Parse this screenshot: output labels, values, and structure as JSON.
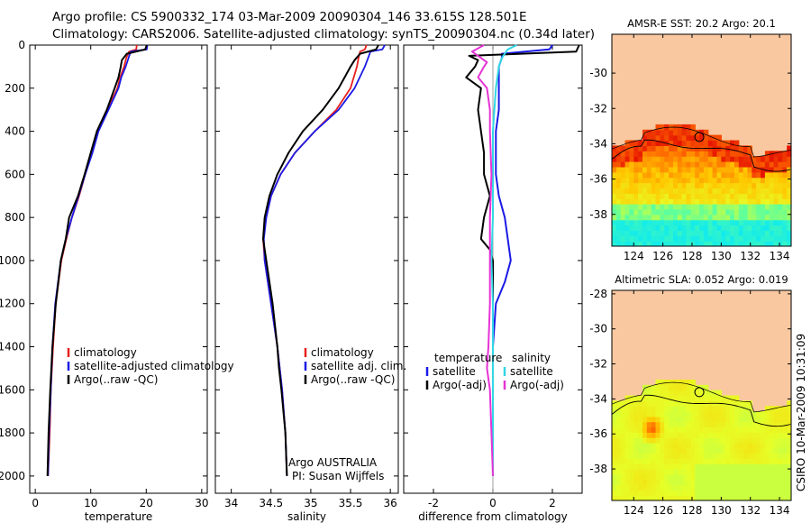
{
  "header": {
    "line1": "Argo profile: CS 5900332_174 03-Mar-2009 20090304_146 33.615S 128.501E",
    "line2": "Climatology: CARS2006. Satellite-adjusted climatology: synTS_20090304.nc (0.34d later)"
  },
  "side_label": "CSIRO 10-Mar-2009 10:31:09",
  "panel_notes": {
    "argo_program": "Argo AUSTRALIA",
    "pi": "PI: Susan Wijffels"
  },
  "colors": {
    "climatology": "#e8201c",
    "satellite": "#1a1ae6",
    "argo": "#000000",
    "cyan": "#33d6e6",
    "magenta": "#e633d6",
    "land": "#f9c8a0"
  },
  "chart_data": [
    {
      "type": "line",
      "id": "temperature",
      "xlabel": "temperature",
      "ylabel": "",
      "xlim": [
        -1,
        31
      ],
      "ylim": [
        2080,
        0
      ],
      "xticks": [
        0,
        10,
        20,
        30
      ],
      "yticks": [
        0,
        200,
        400,
        600,
        800,
        1000,
        1200,
        1400,
        1600,
        1800,
        2000
      ],
      "legend": [
        "climatology",
        "satellite-adjusted climatology",
        "Argo(..raw -QC)"
      ],
      "series": [
        {
          "name": "climatology",
          "depth": [
            0,
            20,
            30,
            60,
            100,
            150,
            200,
            300,
            400,
            500,
            600,
            700,
            800,
            900,
            1000,
            1200,
            1400,
            1600,
            1800,
            2000
          ],
          "values": [
            18.3,
            18.2,
            16.9,
            16.4,
            16.0,
            15.3,
            14.8,
            13.0,
            11.3,
            10.2,
            9.0,
            7.9,
            6.6,
            5.6,
            4.7,
            3.7,
            3.2,
            2.8,
            2.6,
            2.3
          ]
        },
        {
          "name": "satellite-adjusted climatology",
          "depth": [
            0,
            20,
            30,
            60,
            100,
            150,
            200,
            300,
            400,
            500,
            600,
            700,
            800,
            900,
            1000,
            1200,
            1400,
            1600,
            1800,
            2000
          ],
          "values": [
            20.2,
            20.1,
            17.2,
            16.8,
            16.3,
            15.5,
            15.0,
            13.2,
            11.4,
            10.3,
            9.0,
            7.8,
            6.6,
            5.5,
            4.6,
            3.6,
            3.1,
            2.8,
            2.5,
            2.3
          ]
        },
        {
          "name": "Argo(..raw -QC)",
          "depth": [
            0,
            20,
            40,
            70,
            100,
            150,
            200,
            300,
            400,
            500,
            600,
            700,
            800,
            900,
            1000,
            1200,
            1400,
            1600,
            1800,
            2000
          ],
          "values": [
            20.1,
            19.8,
            16.5,
            15.6,
            15.4,
            15.0,
            14.3,
            12.9,
            11.1,
            10.0,
            8.9,
            7.7,
            6.1,
            5.5,
            4.6,
            3.7,
            3.1,
            2.7,
            2.4,
            2.2
          ]
        }
      ]
    },
    {
      "type": "line",
      "id": "salinity",
      "xlabel": "salinity",
      "ylabel": "",
      "xlim": [
        33.8,
        36.1
      ],
      "ylim": [
        2080,
        0
      ],
      "xticks": [
        34,
        34.5,
        35,
        35.5,
        36
      ],
      "yticks": [
        0,
        200,
        400,
        600,
        800,
        1000,
        1200,
        1400,
        1600,
        1800,
        2000
      ],
      "legend": [
        "climatology",
        "satellite adj. clim.",
        "Argo(..raw -QC)"
      ],
      "series": [
        {
          "name": "climatology",
          "depth": [
            0,
            20,
            30,
            60,
            100,
            200,
            300,
            400,
            500,
            600,
            700,
            800,
            900,
            1000,
            1200,
            1400,
            1600,
            1800,
            2000
          ],
          "values": [
            35.7,
            35.68,
            35.62,
            35.6,
            35.58,
            35.5,
            35.32,
            35.05,
            34.8,
            34.62,
            34.5,
            34.44,
            34.4,
            34.42,
            34.5,
            34.58,
            34.64,
            34.68,
            34.7
          ]
        },
        {
          "name": "satellite adj. clim.",
          "depth": [
            0,
            20,
            30,
            60,
            100,
            200,
            300,
            400,
            500,
            600,
            700,
            800,
            900,
            1000,
            1200,
            1400,
            1600,
            1800,
            2000
          ],
          "values": [
            35.93,
            35.9,
            35.75,
            35.72,
            35.68,
            35.55,
            35.35,
            35.05,
            34.8,
            34.62,
            34.5,
            34.44,
            34.41,
            34.42,
            34.5,
            34.58,
            34.64,
            34.68,
            34.7
          ]
        },
        {
          "name": "Argo(..raw -QC)",
          "depth": [
            0,
            20,
            40,
            70,
            100,
            200,
            300,
            400,
            500,
            600,
            700,
            800,
            900,
            1000,
            1200,
            1400,
            1500,
            1600,
            1800,
            2000
          ],
          "values": [
            35.85,
            35.82,
            35.62,
            35.55,
            35.5,
            35.35,
            35.15,
            34.9,
            34.72,
            34.58,
            34.48,
            34.42,
            34.4,
            34.44,
            34.52,
            34.58,
            34.6,
            34.63,
            34.68,
            34.7
          ]
        }
      ]
    },
    {
      "type": "line",
      "id": "difference",
      "xlabel": "difference from climatology",
      "ylabel": "",
      "xlim": [
        -3,
        3
      ],
      "ylim": [
        2080,
        0
      ],
      "xticks": [
        -2,
        0,
        2
      ],
      "yticks": [
        0,
        200,
        400,
        600,
        800,
        1000,
        1200,
        1400,
        1600,
        1800,
        2000
      ],
      "legend": [
        "temperature",
        "satellite",
        "Argo(-adj)",
        "salinity",
        "satellite",
        "Argo(-adj)"
      ],
      "series": [
        {
          "name": "satellite",
          "depth": [
            0,
            20,
            40,
            60,
            100,
            200,
            300,
            400,
            500,
            600,
            700,
            800,
            900,
            1000,
            1100,
            1200,
            1400,
            1600,
            1800,
            2000
          ],
          "values": [
            2.0,
            1.9,
            0.3,
            0.3,
            0.2,
            0.2,
            0.2,
            0.1,
            0.1,
            0.1,
            0.2,
            0.4,
            0.5,
            0.6,
            0.4,
            0.1,
            0.0,
            0.0,
            0.0,
            0.0
          ]
        },
        {
          "name": "Argo(-adj)",
          "depth": [
            0,
            30,
            50,
            70,
            100,
            150,
            200,
            300,
            400,
            500,
            600,
            700,
            800,
            900,
            950,
            1000,
            1200,
            1400,
            1600,
            1800,
            2000
          ],
          "values": [
            2.9,
            2.8,
            -0.8,
            -0.5,
            -0.6,
            -0.9,
            -0.4,
            -0.5,
            -0.4,
            -0.3,
            -0.3,
            -0.1,
            -0.3,
            -0.4,
            -0.1,
            0.0,
            0.0,
            0.0,
            0.0,
            0.0,
            0.0
          ]
        },
        {
          "name": "satellite",
          "depth": [
            0,
            20,
            40,
            60,
            100,
            200,
            400,
            600,
            800,
            1000,
            1200,
            1400,
            1600,
            1800,
            2000
          ],
          "values": [
            0.8,
            0.5,
            0.4,
            0.3,
            0.2,
            0.1,
            0.0,
            0.0,
            0.0,
            -0.05,
            0.0,
            0.0,
            0.0,
            0.0,
            0.0
          ]
        },
        {
          "name": "Argo(-adj)",
          "depth": [
            0,
            30,
            60,
            80,
            100,
            150,
            200,
            300,
            400,
            600,
            800,
            1000,
            1200,
            1400,
            1500,
            1600,
            1800,
            2000
          ],
          "values": [
            -0.3,
            -0.7,
            -0.4,
            -0.2,
            -0.3,
            -0.5,
            -0.2,
            -0.1,
            -0.1,
            -0.05,
            -0.1,
            -0.1,
            -0.1,
            -0.15,
            -0.2,
            -0.1,
            -0.05,
            0.0
          ]
        }
      ]
    },
    {
      "type": "heatmap",
      "id": "sst",
      "title": "AMSR-E SST: 20.2  Argo: 20.1",
      "xticks": [
        124,
        126,
        128,
        130,
        132,
        134
      ],
      "yticks": [
        -30,
        -32,
        -34,
        -36,
        -38
      ],
      "xlim": [
        122.5,
        134.8
      ],
      "ylim": [
        -39.8,
        -27.8
      ],
      "argo_position": [
        128.5,
        -33.615
      ]
    },
    {
      "type": "heatmap",
      "id": "sla",
      "title": "Altimetric SLA: 0.052  Argo: 0.019",
      "xticks": [
        124,
        126,
        128,
        130,
        132,
        134
      ],
      "yticks": [
        -28,
        -30,
        -32,
        -34,
        -36,
        -38
      ],
      "xlim": [
        122.5,
        134.8
      ],
      "ylim": [
        -39.8,
        -27.8
      ],
      "argo_position": [
        128.5,
        -33.615
      ]
    }
  ]
}
